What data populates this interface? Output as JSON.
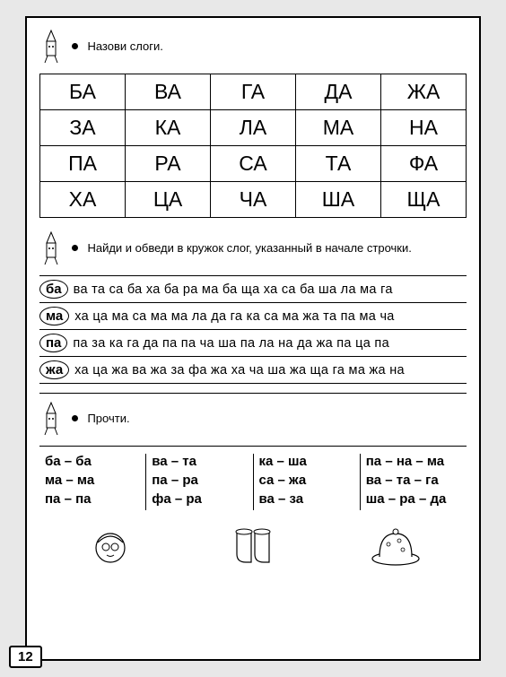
{
  "page_number": "12",
  "task1": {
    "label": "Назови слоги.",
    "table": {
      "rows": [
        [
          "БА",
          "ВА",
          "ГА",
          "ДА",
          "ЖА"
        ],
        [
          "ЗА",
          "КА",
          "ЛА",
          "МА",
          "НА"
        ],
        [
          "ПА",
          "РА",
          "СА",
          "ТА",
          "ФА"
        ],
        [
          "ХА",
          "ЦА",
          "ЧА",
          "ША",
          "ЩА"
        ]
      ]
    }
  },
  "task2": {
    "label": "Найди и обведи в кружок слог, указанный в начале строчки.",
    "rows": [
      {
        "key": "ба",
        "syllables": "ва та са ба ха ба ра ма ба ща ха са ба ша ла ма га"
      },
      {
        "key": "ма",
        "syllables": "ха ца ма са ма ма ла да га ка са ма жа та па ма ча"
      },
      {
        "key": "па",
        "syllables": "па за ка га да па па ча ша па ла на да жа па ца па"
      },
      {
        "key": "жа",
        "syllables": "ха ца жа ва жа за фа жа ха ча ша жа ща га ма жа на"
      }
    ]
  },
  "task3": {
    "label": "Прочти.",
    "columns": [
      [
        "ба – ба",
        "ма – ма",
        "па – па"
      ],
      [
        "ва – та",
        "па – ра",
        "фа – ра"
      ],
      [
        "ка – ша",
        "са – жа",
        "ва – за"
      ],
      [
        "па – на – ма",
        "ва – та – га",
        "ша – ра – да"
      ]
    ]
  },
  "colors": {
    "border": "#000000",
    "background": "#ffffff",
    "page_bg": "#e8e8e8"
  }
}
